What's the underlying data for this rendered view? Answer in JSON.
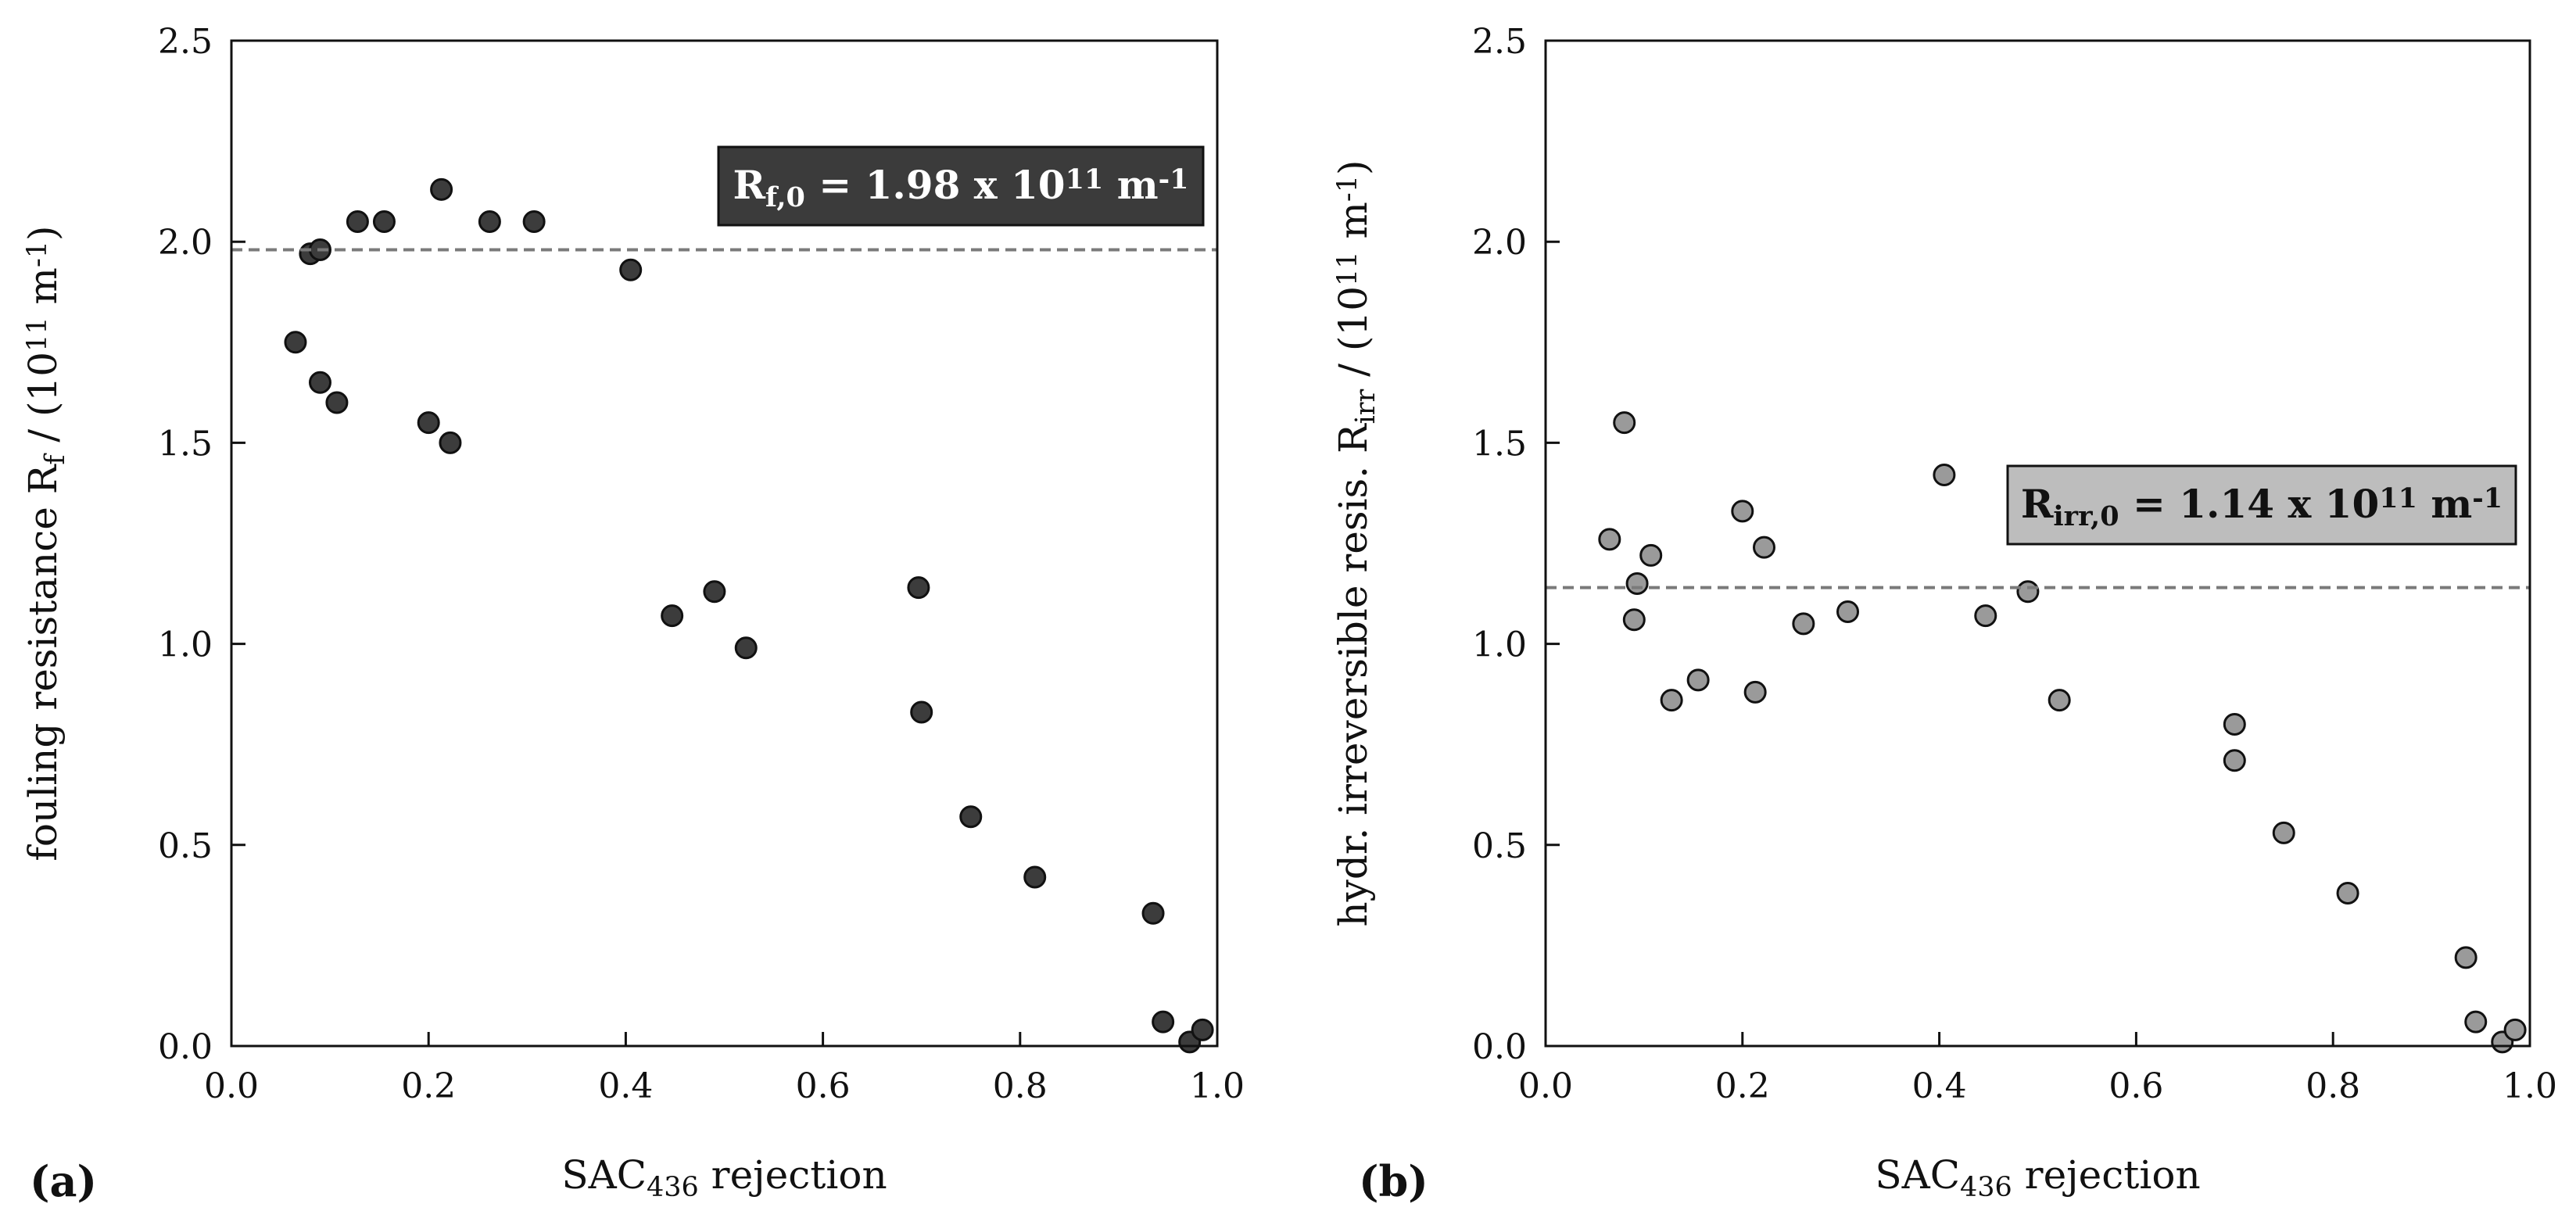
{
  "colors": {
    "panel_a_marker": "#3c3c3c",
    "panel_b_marker": "#9a9a9a",
    "reference_line": "#7a7a7a",
    "panel_a_box": "#3b3b3b",
    "panel_b_box": "#bdbdbd"
  },
  "chart_data": [
    {
      "type": "scatter",
      "panel_label": "(a)",
      "xlabel": {
        "main": "SAC",
        "sub": "436",
        "rest": " rejection"
      },
      "ylabel": {
        "pre": "fouling resistance R",
        "sub": "f",
        "mid": " / (10",
        "sup1": "11",
        "post": " m",
        "sup2": "-1",
        "end": ")"
      },
      "xlim": [
        0,
        1
      ],
      "ylim": [
        0,
        2.5
      ],
      "x_ticks": [
        "0.0",
        "0.2",
        "0.4",
        "0.6",
        "0.8",
        "1.0"
      ],
      "y_ticks": [
        "0.0",
        "0.5",
        "1.0",
        "1.5",
        "2.0",
        "2.5"
      ],
      "reference": {
        "value": 1.98,
        "label": {
          "pre": "R",
          "sub": "f,0",
          "mid": " = 1.98 x 10",
          "sup1": "11",
          "post": " m",
          "sup2": "-1"
        }
      },
      "points": [
        {
          "x": 0.065,
          "y": 1.75
        },
        {
          "x": 0.08,
          "y": 1.97
        },
        {
          "x": 0.09,
          "y": 1.98
        },
        {
          "x": 0.09,
          "y": 1.65
        },
        {
          "x": 0.107,
          "y": 1.6
        },
        {
          "x": 0.128,
          "y": 2.05
        },
        {
          "x": 0.155,
          "y": 2.05
        },
        {
          "x": 0.2,
          "y": 1.55
        },
        {
          "x": 0.213,
          "y": 2.13
        },
        {
          "x": 0.222,
          "y": 1.5
        },
        {
          "x": 0.262,
          "y": 2.05
        },
        {
          "x": 0.307,
          "y": 2.05
        },
        {
          "x": 0.405,
          "y": 1.93
        },
        {
          "x": 0.447,
          "y": 1.07
        },
        {
          "x": 0.49,
          "y": 1.13
        },
        {
          "x": 0.522,
          "y": 0.99
        },
        {
          "x": 0.697,
          "y": 1.14
        },
        {
          "x": 0.7,
          "y": 0.83
        },
        {
          "x": 0.75,
          "y": 0.57
        },
        {
          "x": 0.815,
          "y": 0.42
        },
        {
          "x": 0.935,
          "y": 0.33
        },
        {
          "x": 0.945,
          "y": 0.06
        },
        {
          "x": 0.972,
          "y": 0.01
        },
        {
          "x": 0.985,
          "y": 0.04
        }
      ]
    },
    {
      "type": "scatter",
      "panel_label": "(b)",
      "xlabel": {
        "main": "SAC",
        "sub": "436",
        "rest": " rejection"
      },
      "ylabel": {
        "pre": "hydr. irreversible resis. R",
        "sub": "irr",
        "mid": " / (10",
        "sup1": "11",
        "post": " m",
        "sup2": "-1",
        "end": ")"
      },
      "xlim": [
        0,
        1
      ],
      "ylim": [
        0,
        2.5
      ],
      "x_ticks": [
        "0.0",
        "0.2",
        "0.4",
        "0.6",
        "0.8",
        "1.0"
      ],
      "y_ticks": [
        "0.0",
        "0.5",
        "1.0",
        "1.5",
        "2.0",
        "2.5"
      ],
      "reference": {
        "value": 1.14,
        "label": {
          "pre": "R",
          "sub": "irr,0",
          "mid": " = 1.14 x 10",
          "sup1": "11",
          "post": " m",
          "sup2": "-1"
        }
      },
      "points": [
        {
          "x": 0.065,
          "y": 1.26
        },
        {
          "x": 0.08,
          "y": 1.55
        },
        {
          "x": 0.09,
          "y": 1.06
        },
        {
          "x": 0.093,
          "y": 1.15
        },
        {
          "x": 0.107,
          "y": 1.22
        },
        {
          "x": 0.128,
          "y": 0.86
        },
        {
          "x": 0.155,
          "y": 0.91
        },
        {
          "x": 0.2,
          "y": 1.33
        },
        {
          "x": 0.213,
          "y": 0.88
        },
        {
          "x": 0.222,
          "y": 1.24
        },
        {
          "x": 0.262,
          "y": 1.05
        },
        {
          "x": 0.307,
          "y": 1.08
        },
        {
          "x": 0.405,
          "y": 1.42
        },
        {
          "x": 0.447,
          "y": 1.07
        },
        {
          "x": 0.49,
          "y": 1.13
        },
        {
          "x": 0.522,
          "y": 0.86
        },
        {
          "x": 0.7,
          "y": 0.8
        },
        {
          "x": 0.7,
          "y": 0.71
        },
        {
          "x": 0.75,
          "y": 0.53
        },
        {
          "x": 0.815,
          "y": 0.38
        },
        {
          "x": 0.935,
          "y": 0.22
        },
        {
          "x": 0.945,
          "y": 0.06
        },
        {
          "x": 0.972,
          "y": 0.01
        },
        {
          "x": 0.985,
          "y": 0.04
        }
      ]
    }
  ]
}
